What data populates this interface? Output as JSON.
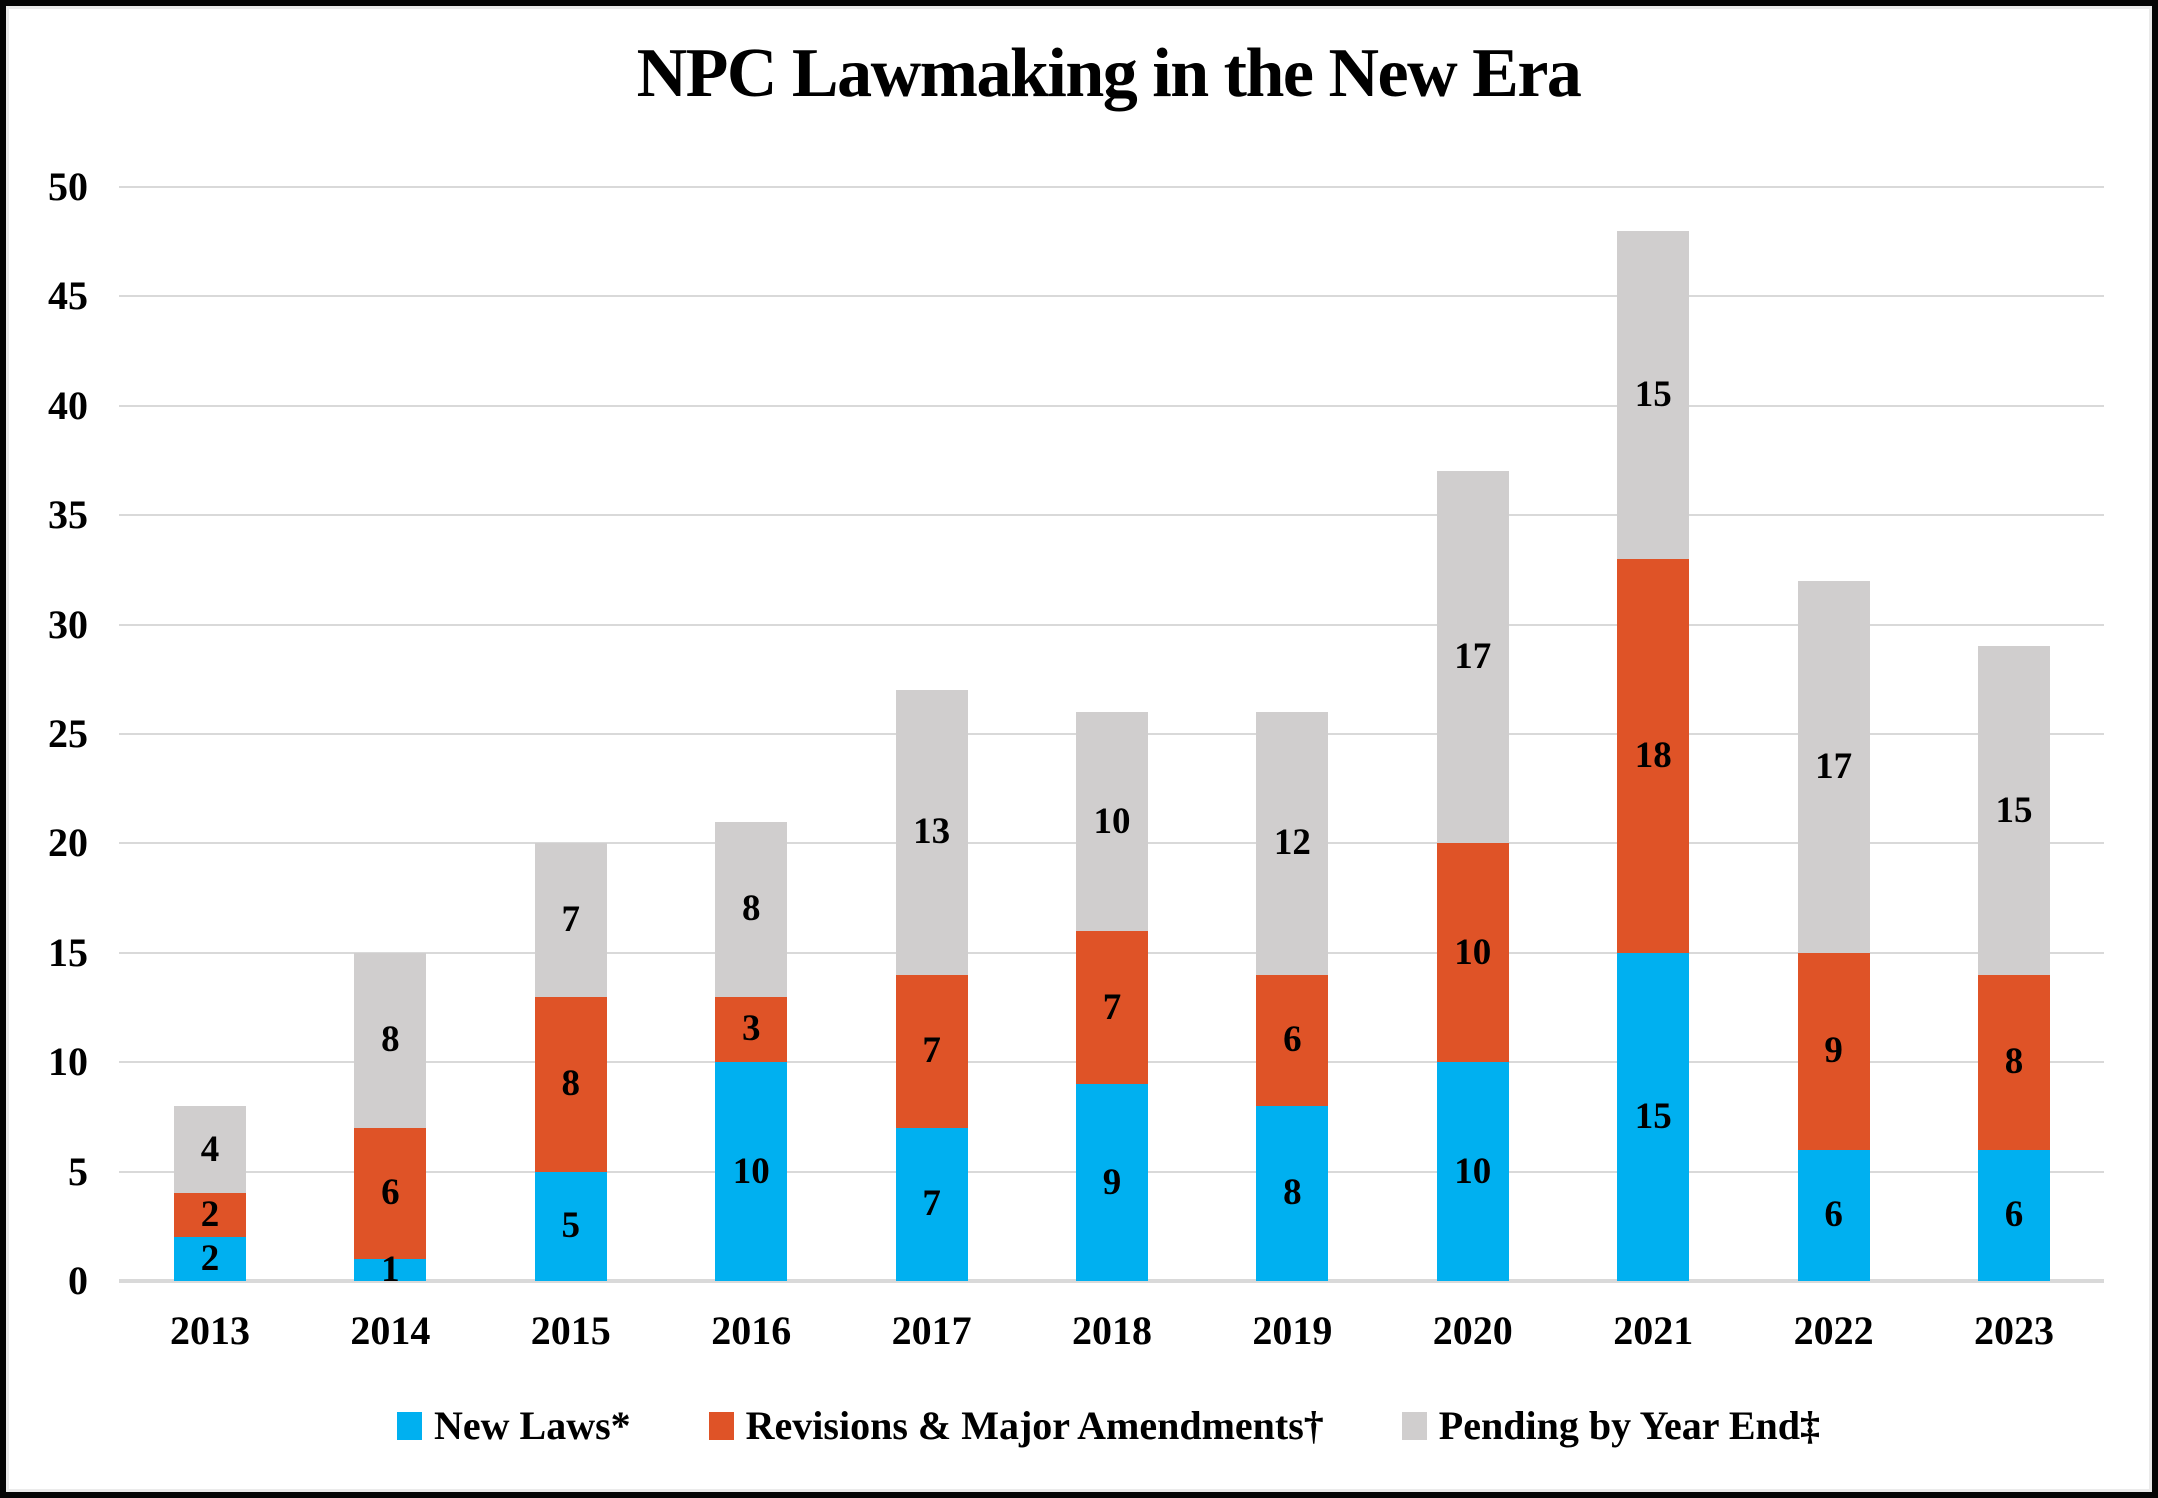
{
  "title": "NPC Lawmaking in the New Era",
  "colors": {
    "new_laws": "#00B0F0",
    "revisions": "#DF5327",
    "pending": "#D0CECE",
    "gridline": "#D9D9D9",
    "axis_line": "#D9D9D9",
    "text": "#000000",
    "background": "#FFFFFF",
    "border": "#050505"
  },
  "chart_data": {
    "type": "bar",
    "stacked": true,
    "title": "NPC Lawmaking in the New Era",
    "xlabel": "",
    "ylabel": "",
    "categories": [
      "2013",
      "2014",
      "2015",
      "2016",
      "2017",
      "2018",
      "2019",
      "2020",
      "2021",
      "2022",
      "2023"
    ],
    "series": [
      {
        "name": "New Laws*",
        "color": "#00B0F0",
        "values": [
          2,
          1,
          5,
          10,
          7,
          9,
          8,
          10,
          15,
          6,
          6
        ]
      },
      {
        "name": "Revisions & Major Amendments†",
        "color": "#DF5327",
        "values": [
          2,
          6,
          8,
          3,
          7,
          7,
          6,
          10,
          18,
          9,
          8
        ]
      },
      {
        "name": "Pending by Year End‡",
        "color": "#D0CECE",
        "values": [
          4,
          8,
          7,
          8,
          13,
          10,
          12,
          17,
          15,
          17,
          15
        ]
      }
    ],
    "totals": [
      8,
      15,
      20,
      21,
      27,
      26,
      26,
      37,
      48,
      32,
      29
    ],
    "ylim": [
      0,
      50
    ],
    "ytick_step": 5,
    "yticks": [
      "0",
      "5",
      "10",
      "15",
      "20",
      "25",
      "30",
      "35",
      "40",
      "45",
      "50"
    ],
    "grid": true,
    "legend_position": "bottom",
    "data_labels": "inside-center"
  }
}
